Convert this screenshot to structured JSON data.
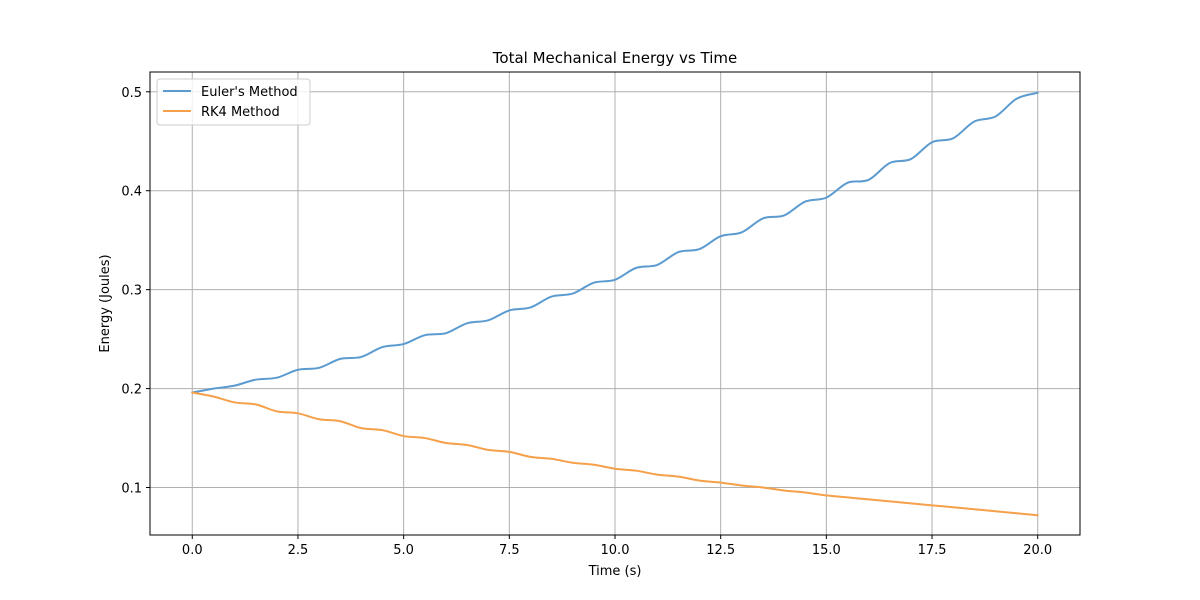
{
  "chart_data": {
    "type": "line",
    "title": "Total Mechanical Energy vs Time",
    "xlabel": "Time (s)",
    "ylabel": "Energy (Joules)",
    "xlim": [
      -1.0,
      21.0
    ],
    "ylim": [
      0.052,
      0.52
    ],
    "xticks": [
      0.0,
      2.5,
      5.0,
      7.5,
      10.0,
      12.5,
      15.0,
      17.5,
      20.0
    ],
    "xtick_labels": [
      "0.0",
      "2.5",
      "5.0",
      "7.5",
      "10.0",
      "12.5",
      "15.0",
      "17.5",
      "20.0"
    ],
    "yticks": [
      0.1,
      0.2,
      0.3,
      0.4,
      0.5
    ],
    "ytick_labels": [
      "0.1",
      "0.2",
      "0.3",
      "0.4",
      "0.5"
    ],
    "grid": true,
    "legend_position": "top-left",
    "series": [
      {
        "name": "Euler's Method",
        "color": "#5b9bd0",
        "x": [
          0.0,
          0.5,
          1.0,
          1.5,
          2.0,
          2.5,
          3.0,
          3.5,
          4.0,
          4.5,
          5.0,
          5.5,
          6.0,
          6.5,
          7.0,
          7.5,
          8.0,
          8.5,
          9.0,
          9.5,
          10.0,
          10.5,
          11.0,
          11.5,
          12.0,
          12.5,
          13.0,
          13.5,
          14.0,
          14.5,
          15.0,
          15.5,
          16.0,
          16.5,
          17.0,
          17.5,
          18.0,
          18.5,
          19.0,
          19.5,
          20.0
        ],
        "y": [
          0.196,
          0.2,
          0.203,
          0.209,
          0.211,
          0.219,
          0.221,
          0.23,
          0.232,
          0.242,
          0.245,
          0.254,
          0.256,
          0.266,
          0.269,
          0.279,
          0.282,
          0.293,
          0.296,
          0.307,
          0.31,
          0.322,
          0.325,
          0.338,
          0.341,
          0.354,
          0.358,
          0.372,
          0.375,
          0.389,
          0.393,
          0.408,
          0.411,
          0.428,
          0.432,
          0.449,
          0.453,
          0.47,
          0.475,
          0.493,
          0.499
        ]
      },
      {
        "name": "RK4 Method",
        "color": "#f5a04a",
        "x": [
          0.0,
          0.5,
          1.0,
          1.5,
          2.0,
          2.5,
          3.0,
          3.5,
          4.0,
          4.5,
          5.0,
          5.5,
          6.0,
          6.5,
          7.0,
          7.5,
          8.0,
          8.5,
          9.0,
          9.5,
          10.0,
          10.5,
          11.0,
          11.5,
          12.0,
          12.5,
          13.0,
          13.5,
          14.0,
          14.5,
          15.0,
          15.5,
          16.0,
          16.5,
          17.0,
          17.5,
          18.0,
          18.5,
          19.0,
          19.5,
          20.0
        ],
        "y": [
          0.196,
          0.192,
          0.186,
          0.184,
          0.177,
          0.175,
          0.169,
          0.167,
          0.16,
          0.158,
          0.152,
          0.15,
          0.145,
          0.143,
          0.138,
          0.136,
          0.131,
          0.129,
          0.125,
          0.123,
          0.119,
          0.117,
          0.113,
          0.111,
          0.107,
          0.105,
          0.102,
          0.1,
          0.097,
          0.095,
          0.092,
          0.09,
          0.088,
          0.086,
          0.084,
          0.082,
          0.08,
          0.078,
          0.076,
          0.074,
          0.072
        ]
      }
    ]
  }
}
